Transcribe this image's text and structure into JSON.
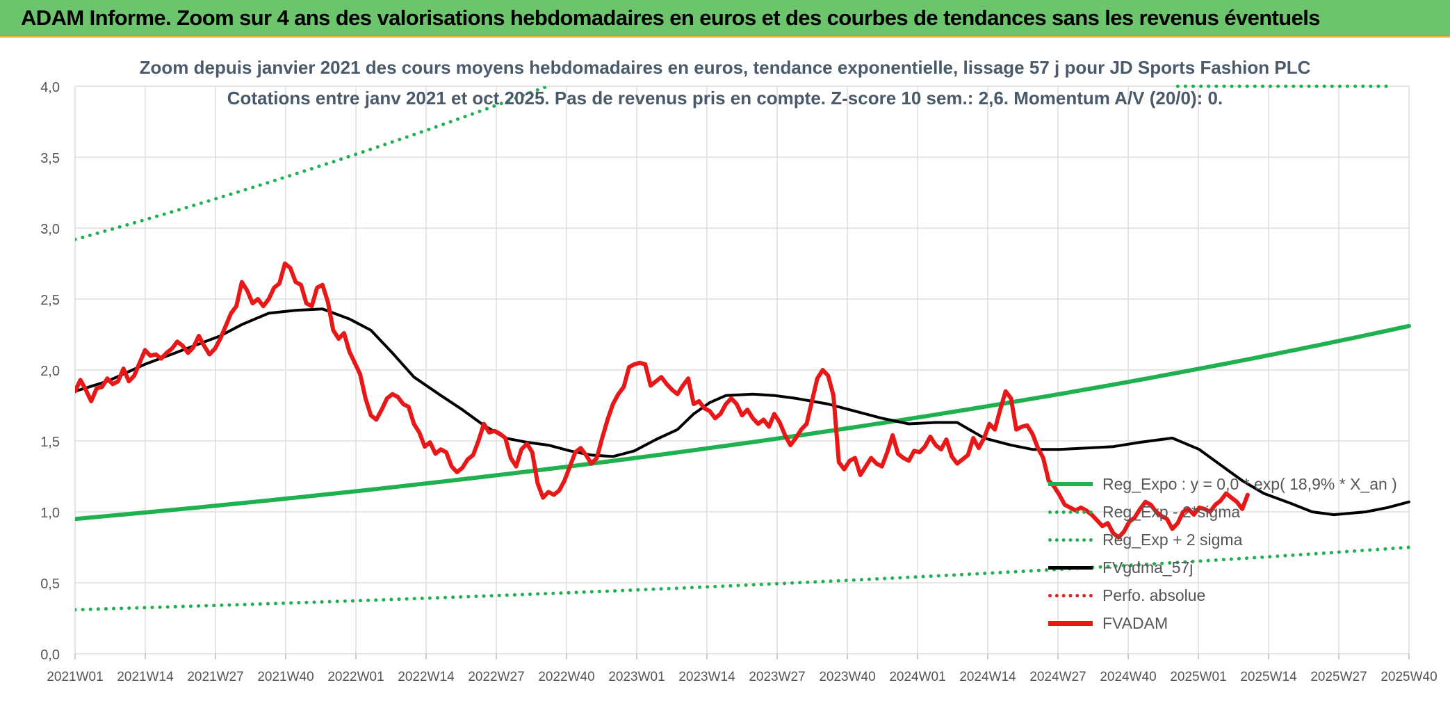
{
  "banner": {
    "title": "ADAM Informe. Zoom sur 4 ans des valorisations hebdomadaires en euros et des courbes de tendances sans les revenus éventuels"
  },
  "chart_data": {
    "type": "line",
    "title": "Zoom depuis janvier 2021 des cours moyens hebdomadaires en euros, tendance exponentielle, lissage 57 j pour JD Sports Fashion PLC",
    "subtitle": "Cotations entre janv 2021 et oct 2025. Pas de revenus pris en compte. Z-score 10 sem.: 2,6. Momentum A/V (20/0): 0.",
    "ylim": [
      0,
      4
    ],
    "yticks": [
      "0,0",
      "0,5",
      "1,0",
      "1,5",
      "2,0",
      "2,5",
      "3,0",
      "3,5",
      "4,0"
    ],
    "xticks": [
      "2021W01",
      "2021W14",
      "2021W27",
      "2021W40",
      "2022W01",
      "2022W14",
      "2022W27",
      "2022W40",
      "2023W01",
      "2023W14",
      "2023W27",
      "2023W40",
      "2024W01",
      "2024W14",
      "2024W27",
      "2024W40",
      "2025W01",
      "2025W14",
      "2025W27",
      "2025W40"
    ],
    "grid": true,
    "legend_position": "bottom-right",
    "x_unit": "weeks since 2021W01",
    "series": [
      {
        "name": "Reg_Expo : y = 0,0 * exp( 18,9% *  X_an )",
        "style": "solid",
        "color": "#1fb04f",
        "width": 6,
        "points": [
          [
            0,
            0.95
          ],
          [
            248,
            2.31
          ]
        ]
      },
      {
        "name": "Reg_Exp - 2*sigma",
        "style": "dotted",
        "color": "#1fb04f",
        "width": 4,
        "points": [
          [
            0,
            0.31
          ],
          [
            248,
            0.75
          ]
        ]
      },
      {
        "name": "Reg_Exp + 2 sigma",
        "style": "dotted",
        "color": "#1fb04f",
        "width": 4,
        "points": [
          [
            0,
            2.92
          ],
          [
            248,
            7.1
          ]
        ],
        "reappear": [
          [
            205,
            4.0
          ],
          [
            245,
            4.0
          ]
        ]
      },
      {
        "name": "FVgdma_57j",
        "style": "solid",
        "color": "#000000",
        "width": 4,
        "points": [
          [
            0,
            1.85
          ],
          [
            6,
            1.92
          ],
          [
            13,
            2.04
          ],
          [
            20,
            2.14
          ],
          [
            27,
            2.24
          ],
          [
            31,
            2.32
          ],
          [
            36,
            2.4
          ],
          [
            41,
            2.42
          ],
          [
            46,
            2.43
          ],
          [
            51,
            2.36
          ],
          [
            55,
            2.28
          ],
          [
            59,
            2.12
          ],
          [
            63,
            1.95
          ],
          [
            68,
            1.82
          ],
          [
            72,
            1.72
          ],
          [
            76,
            1.61
          ],
          [
            80,
            1.52
          ],
          [
            84,
            1.49
          ],
          [
            88,
            1.47
          ],
          [
            92,
            1.43
          ],
          [
            96,
            1.4
          ],
          [
            100,
            1.39
          ],
          [
            104,
            1.43
          ],
          [
            108,
            1.51
          ],
          [
            112,
            1.58
          ],
          [
            115,
            1.69
          ],
          [
            118,
            1.77
          ],
          [
            121,
            1.82
          ],
          [
            126,
            1.83
          ],
          [
            130,
            1.82
          ],
          [
            134,
            1.8
          ],
          [
            140,
            1.76
          ],
          [
            145,
            1.71
          ],
          [
            150,
            1.66
          ],
          [
            155,
            1.62
          ],
          [
            160,
            1.63
          ],
          [
            164,
            1.63
          ],
          [
            169,
            1.52
          ],
          [
            174,
            1.47
          ],
          [
            178,
            1.44
          ],
          [
            183,
            1.44
          ],
          [
            188,
            1.45
          ],
          [
            193,
            1.46
          ],
          [
            198,
            1.49
          ],
          [
            204,
            1.52
          ],
          [
            209,
            1.44
          ],
          [
            213,
            1.33
          ],
          [
            217,
            1.22
          ],
          [
            221,
            1.13
          ],
          [
            226,
            1.06
          ],
          [
            230,
            1.0
          ],
          [
            234,
            0.98
          ],
          [
            240,
            1.0
          ],
          [
            244,
            1.03
          ],
          [
            248,
            1.07
          ]
        ]
      },
      {
        "name": "Perfo. absolue",
        "style": "dotted",
        "color": "#e02020",
        "width": 4,
        "points": []
      },
      {
        "name": "FVADAM",
        "style": "solid",
        "color": "#e81818",
        "width": 6,
        "points": [
          [
            0,
            1.85
          ],
          [
            1,
            1.93
          ],
          [
            2,
            1.86
          ],
          [
            3,
            1.78
          ],
          [
            4,
            1.87
          ],
          [
            5,
            1.88
          ],
          [
            6,
            1.94
          ],
          [
            7,
            1.9
          ],
          [
            8,
            1.92
          ],
          [
            9,
            2.01
          ],
          [
            10,
            1.92
          ],
          [
            11,
            1.96
          ],
          [
            12,
            2.05
          ],
          [
            13,
            2.14
          ],
          [
            14,
            2.1
          ],
          [
            15,
            2.11
          ],
          [
            16,
            2.08
          ],
          [
            17,
            2.12
          ],
          [
            18,
            2.15
          ],
          [
            19,
            2.2
          ],
          [
            20,
            2.17
          ],
          [
            21,
            2.12
          ],
          [
            22,
            2.16
          ],
          [
            23,
            2.24
          ],
          [
            24,
            2.17
          ],
          [
            25,
            2.11
          ],
          [
            26,
            2.15
          ],
          [
            27,
            2.22
          ],
          [
            28,
            2.31
          ],
          [
            29,
            2.4
          ],
          [
            30,
            2.45
          ],
          [
            31,
            2.62
          ],
          [
            32,
            2.56
          ],
          [
            33,
            2.47
          ],
          [
            34,
            2.5
          ],
          [
            35,
            2.45
          ],
          [
            36,
            2.5
          ],
          [
            37,
            2.58
          ],
          [
            38,
            2.61
          ],
          [
            39,
            2.75
          ],
          [
            40,
            2.72
          ],
          [
            41,
            2.62
          ],
          [
            42,
            2.6
          ],
          [
            43,
            2.47
          ],
          [
            44,
            2.45
          ],
          [
            45,
            2.58
          ],
          [
            46,
            2.6
          ],
          [
            47,
            2.48
          ],
          [
            48,
            2.28
          ],
          [
            49,
            2.22
          ],
          [
            50,
            2.26
          ],
          [
            51,
            2.13
          ],
          [
            52,
            2.05
          ],
          [
            53,
            1.97
          ],
          [
            54,
            1.8
          ],
          [
            55,
            1.68
          ],
          [
            56,
            1.65
          ],
          [
            57,
            1.72
          ],
          [
            58,
            1.8
          ],
          [
            59,
            1.83
          ],
          [
            60,
            1.81
          ],
          [
            61,
            1.76
          ],
          [
            62,
            1.74
          ],
          [
            63,
            1.62
          ],
          [
            64,
            1.56
          ],
          [
            65,
            1.46
          ],
          [
            66,
            1.49
          ],
          [
            67,
            1.41
          ],
          [
            68,
            1.44
          ],
          [
            69,
            1.42
          ],
          [
            70,
            1.32
          ],
          [
            71,
            1.28
          ],
          [
            72,
            1.31
          ],
          [
            73,
            1.37
          ],
          [
            74,
            1.4
          ],
          [
            75,
            1.5
          ],
          [
            76,
            1.62
          ],
          [
            77,
            1.56
          ],
          [
            78,
            1.57
          ],
          [
            79,
            1.55
          ],
          [
            80,
            1.52
          ],
          [
            81,
            1.38
          ],
          [
            82,
            1.32
          ],
          [
            83,
            1.44
          ],
          [
            84,
            1.48
          ],
          [
            85,
            1.42
          ],
          [
            86,
            1.2
          ],
          [
            87,
            1.1
          ],
          [
            88,
            1.14
          ],
          [
            89,
            1.12
          ],
          [
            90,
            1.15
          ],
          [
            91,
            1.22
          ],
          [
            92,
            1.32
          ],
          [
            93,
            1.42
          ],
          [
            94,
            1.45
          ],
          [
            95,
            1.4
          ],
          [
            96,
            1.34
          ],
          [
            97,
            1.38
          ],
          [
            98,
            1.52
          ],
          [
            99,
            1.65
          ],
          [
            100,
            1.76
          ],
          [
            101,
            1.83
          ],
          [
            102,
            1.88
          ],
          [
            103,
            2.02
          ],
          [
            104,
            2.04
          ],
          [
            105,
            2.05
          ],
          [
            106,
            2.04
          ],
          [
            107,
            1.89
          ],
          [
            108,
            1.92
          ],
          [
            109,
            1.95
          ],
          [
            110,
            1.9
          ],
          [
            111,
            1.86
          ],
          [
            112,
            1.83
          ],
          [
            113,
            1.89
          ],
          [
            114,
            1.94
          ],
          [
            115,
            1.76
          ],
          [
            116,
            1.78
          ],
          [
            117,
            1.73
          ],
          [
            118,
            1.71
          ],
          [
            119,
            1.66
          ],
          [
            120,
            1.69
          ],
          [
            121,
            1.76
          ],
          [
            122,
            1.8
          ],
          [
            123,
            1.76
          ],
          [
            124,
            1.68
          ],
          [
            125,
            1.72
          ],
          [
            126,
            1.66
          ],
          [
            127,
            1.62
          ],
          [
            128,
            1.65
          ],
          [
            129,
            1.6
          ],
          [
            130,
            1.69
          ],
          [
            131,
            1.63
          ],
          [
            132,
            1.54
          ],
          [
            133,
            1.47
          ],
          [
            134,
            1.52
          ],
          [
            135,
            1.58
          ],
          [
            136,
            1.62
          ],
          [
            137,
            1.78
          ],
          [
            138,
            1.94
          ],
          [
            139,
            2.0
          ],
          [
            140,
            1.96
          ],
          [
            141,
            1.82
          ],
          [
            142,
            1.35
          ],
          [
            143,
            1.3
          ],
          [
            144,
            1.36
          ],
          [
            145,
            1.38
          ],
          [
            146,
            1.26
          ],
          [
            147,
            1.32
          ],
          [
            148,
            1.38
          ],
          [
            149,
            1.34
          ],
          [
            150,
            1.32
          ],
          [
            151,
            1.42
          ],
          [
            152,
            1.54
          ],
          [
            153,
            1.41
          ],
          [
            154,
            1.38
          ],
          [
            155,
            1.36
          ],
          [
            156,
            1.43
          ],
          [
            157,
            1.42
          ],
          [
            158,
            1.46
          ],
          [
            159,
            1.53
          ],
          [
            160,
            1.47
          ],
          [
            161,
            1.44
          ],
          [
            162,
            1.51
          ],
          [
            163,
            1.39
          ],
          [
            164,
            1.34
          ],
          [
            165,
            1.37
          ],
          [
            166,
            1.4
          ],
          [
            167,
            1.52
          ],
          [
            168,
            1.45
          ],
          [
            169,
            1.52
          ],
          [
            170,
            1.62
          ],
          [
            171,
            1.58
          ],
          [
            172,
            1.72
          ],
          [
            173,
            1.85
          ],
          [
            174,
            1.8
          ],
          [
            175,
            1.58
          ],
          [
            176,
            1.6
          ],
          [
            177,
            1.61
          ],
          [
            178,
            1.55
          ],
          [
            179,
            1.45
          ],
          [
            180,
            1.38
          ],
          [
            181,
            1.22
          ],
          [
            182,
            1.18
          ],
          [
            183,
            1.12
          ],
          [
            184,
            1.05
          ],
          [
            185,
            1.03
          ],
          [
            186,
            1.01
          ],
          [
            187,
            1.03
          ],
          [
            188,
            1.01
          ],
          [
            189,
            0.98
          ],
          [
            190,
            0.94
          ],
          [
            191,
            0.9
          ],
          [
            192,
            0.92
          ],
          [
            193,
            0.85
          ],
          [
            194,
            0.82
          ],
          [
            195,
            0.86
          ],
          [
            196,
            0.93
          ],
          [
            197,
            0.96
          ],
          [
            198,
            1.02
          ],
          [
            199,
            1.07
          ],
          [
            200,
            1.05
          ],
          [
            201,
            1.0
          ],
          [
            202,
            0.97
          ],
          [
            203,
            0.95
          ],
          [
            204,
            0.88
          ],
          [
            205,
            0.92
          ],
          [
            206,
            1.0
          ],
          [
            207,
            1.02
          ],
          [
            208,
            0.98
          ],
          [
            209,
            1.03
          ],
          [
            210,
            1.02
          ],
          [
            211,
            1.0
          ],
          [
            212,
            1.05
          ],
          [
            213,
            1.08
          ],
          [
            214,
            1.13
          ],
          [
            215,
            1.1
          ],
          [
            216,
            1.07
          ],
          [
            217,
            1.02
          ],
          [
            218,
            1.12
          ]
        ]
      }
    ]
  }
}
